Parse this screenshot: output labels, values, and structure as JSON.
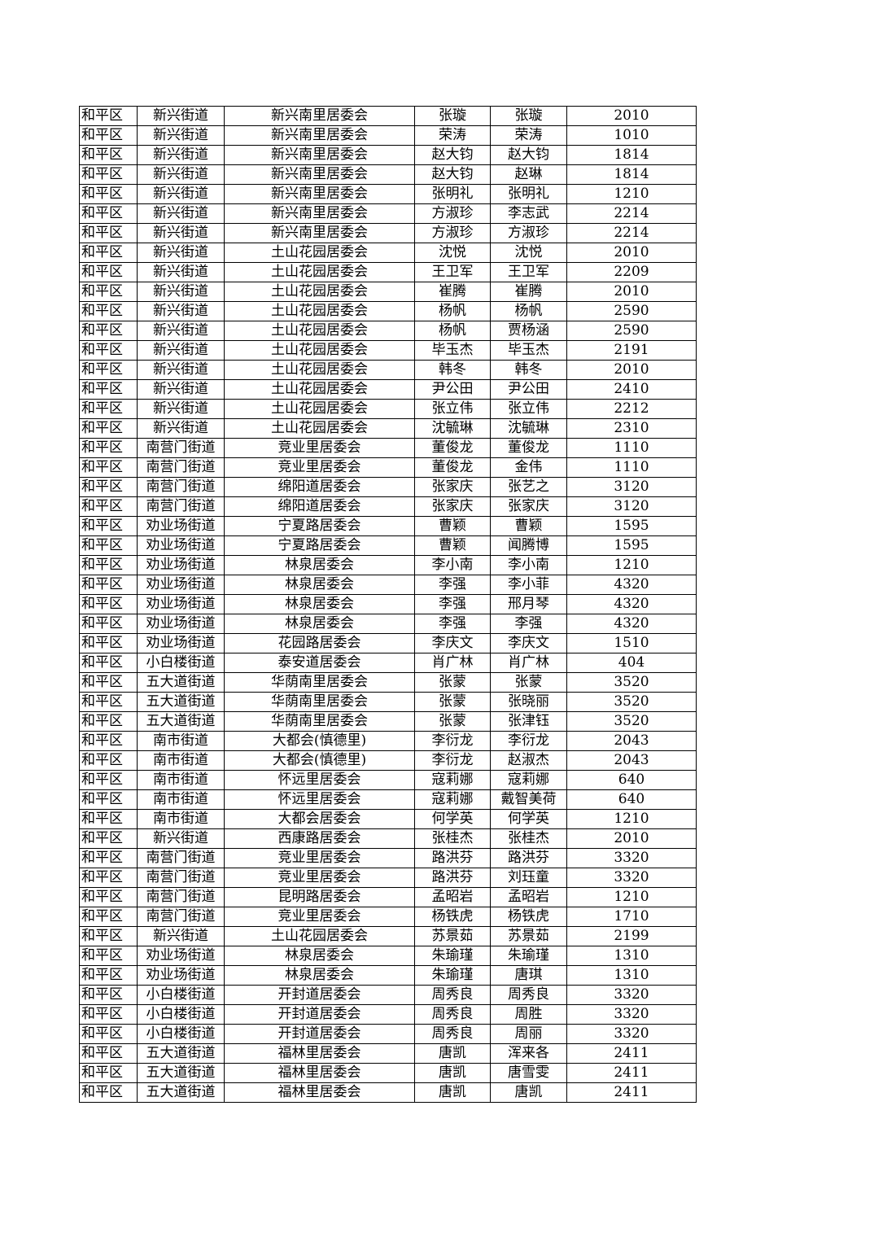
{
  "table": {
    "rows": [
      [
        "和平区",
        "新兴街道",
        "新兴南里居委会",
        "张璇",
        "张璇",
        "2010"
      ],
      [
        "和平区",
        "新兴街道",
        "新兴南里居委会",
        "荣涛",
        "荣涛",
        "1010"
      ],
      [
        "和平区",
        "新兴街道",
        "新兴南里居委会",
        "赵大钧",
        "赵大钧",
        "1814"
      ],
      [
        "和平区",
        "新兴街道",
        "新兴南里居委会",
        "赵大钧",
        "赵琳",
        "1814"
      ],
      [
        "和平区",
        "新兴街道",
        "新兴南里居委会",
        "张明礼",
        "张明礼",
        "1210"
      ],
      [
        "和平区",
        "新兴街道",
        "新兴南里居委会",
        "方淑珍",
        "李志武",
        "2214"
      ],
      [
        "和平区",
        "新兴街道",
        "新兴南里居委会",
        "方淑珍",
        "方淑珍",
        "2214"
      ],
      [
        "和平区",
        "新兴街道",
        "土山花园居委会",
        "沈悦",
        "沈悦",
        "2010"
      ],
      [
        "和平区",
        "新兴街道",
        "土山花园居委会",
        "王卫军",
        "王卫军",
        "2209"
      ],
      [
        "和平区",
        "新兴街道",
        "土山花园居委会",
        "崔腾",
        "崔腾",
        "2010"
      ],
      [
        "和平区",
        "新兴街道",
        "土山花园居委会",
        "杨帆",
        "杨帆",
        "2590"
      ],
      [
        "和平区",
        "新兴街道",
        "土山花园居委会",
        "杨帆",
        "贾杨涵",
        "2590"
      ],
      [
        "和平区",
        "新兴街道",
        "土山花园居委会",
        "毕玉杰",
        "毕玉杰",
        "2191"
      ],
      [
        "和平区",
        "新兴街道",
        "土山花园居委会",
        "韩冬",
        "韩冬",
        "2010"
      ],
      [
        "和平区",
        "新兴街道",
        "土山花园居委会",
        "尹公田",
        "尹公田",
        "2410"
      ],
      [
        "和平区",
        "新兴街道",
        "土山花园居委会",
        "张立伟",
        "张立伟",
        "2212"
      ],
      [
        "和平区",
        "新兴街道",
        "土山花园居委会",
        "沈毓琳",
        "沈毓琳",
        "2310"
      ],
      [
        "和平区",
        "南营门街道",
        "竞业里居委会",
        "董俊龙",
        "董俊龙",
        "1110"
      ],
      [
        "和平区",
        "南营门街道",
        "竞业里居委会",
        "董俊龙",
        "金伟",
        "1110"
      ],
      [
        "和平区",
        "南营门街道",
        "绵阳道居委会",
        "张家庆",
        "张艺之",
        "3120"
      ],
      [
        "和平区",
        "南营门街道",
        "绵阳道居委会",
        "张家庆",
        "张家庆",
        "3120"
      ],
      [
        "和平区",
        "劝业场街道",
        "宁夏路居委会",
        "曹颖",
        "曹颖",
        "1595"
      ],
      [
        "和平区",
        "劝业场街道",
        "宁夏路居委会",
        "曹颖",
        "闻腾博",
        "1595"
      ],
      [
        "和平区",
        "劝业场街道",
        "林泉居委会",
        "李小南",
        "李小南",
        "1210"
      ],
      [
        "和平区",
        "劝业场街道",
        "林泉居委会",
        "李强",
        "李小菲",
        "4320"
      ],
      [
        "和平区",
        "劝业场街道",
        "林泉居委会",
        "李强",
        "邢月琴",
        "4320"
      ],
      [
        "和平区",
        "劝业场街道",
        "林泉居委会",
        "李强",
        "李强",
        "4320"
      ],
      [
        "和平区",
        "劝业场街道",
        "花园路居委会",
        "李庆文",
        "李庆文",
        "1510"
      ],
      [
        "和平区",
        "小白楼街道",
        "泰安道居委会",
        "肖广林",
        "肖广林",
        "404"
      ],
      [
        "和平区",
        "五大道街道",
        "华荫南里居委会",
        "张蒙",
        "张蒙",
        "3520"
      ],
      [
        "和平区",
        "五大道街道",
        "华荫南里居委会",
        "张蒙",
        "张晓丽",
        "3520"
      ],
      [
        "和平区",
        "五大道街道",
        "华荫南里居委会",
        "张蒙",
        "张津钰",
        "3520"
      ],
      [
        "和平区",
        "南市街道",
        "大都会(慎德里)",
        "李衍龙",
        "李衍龙",
        "2043"
      ],
      [
        "和平区",
        "南市街道",
        "大都会(慎德里)",
        "李衍龙",
        "赵淑杰",
        "2043"
      ],
      [
        "和平区",
        "南市街道",
        "怀远里居委会",
        "寇莉娜",
        "寇莉娜",
        "640"
      ],
      [
        "和平区",
        "南市街道",
        "怀远里居委会",
        "寇莉娜",
        "戴智美荷",
        "640"
      ],
      [
        "和平区",
        "南市街道",
        "大都会居委会",
        "何学英",
        "何学英",
        "1210"
      ],
      [
        "和平区",
        "新兴街道",
        "西康路居委会",
        "张桂杰",
        "张桂杰",
        "2010"
      ],
      [
        "和平区",
        "南营门街道",
        "竞业里居委会",
        "路洪芬",
        "路洪芬",
        "3320"
      ],
      [
        "和平区",
        "南营门街道",
        "竞业里居委会",
        "路洪芬",
        "刘珏童",
        "3320"
      ],
      [
        "和平区",
        "南营门街道",
        "昆明路居委会",
        "孟昭岩",
        "孟昭岩",
        "1210"
      ],
      [
        "和平区",
        "南营门街道",
        "竞业里居委会",
        "杨铁虎",
        "杨铁虎",
        "1710"
      ],
      [
        "和平区",
        "新兴街道",
        "土山花园居委会",
        "苏景茹",
        "苏景茹",
        "2199"
      ],
      [
        "和平区",
        "劝业场街道",
        "林泉居委会",
        "朱瑜瑾",
        "朱瑜瑾",
        "1310"
      ],
      [
        "和平区",
        "劝业场街道",
        "林泉居委会",
        "朱瑜瑾",
        "唐琪",
        "1310"
      ],
      [
        "和平区",
        "小白楼街道",
        "开封道居委会",
        "周秀良",
        "周秀良",
        "3320"
      ],
      [
        "和平区",
        "小白楼街道",
        "开封道居委会",
        "周秀良",
        "周胜",
        "3320"
      ],
      [
        "和平区",
        "小白楼街道",
        "开封道居委会",
        "周秀良",
        "周丽",
        "3320"
      ],
      [
        "和平区",
        "五大道街道",
        "福林里居委会",
        "唐凯",
        "浑来各",
        "2411"
      ],
      [
        "和平区",
        "五大道街道",
        "福林里居委会",
        "唐凯",
        "唐雪雯",
        "2411"
      ],
      [
        "和平区",
        "五大道街道",
        "福林里居委会",
        "唐凯",
        "唐凯",
        "2411"
      ]
    ]
  }
}
